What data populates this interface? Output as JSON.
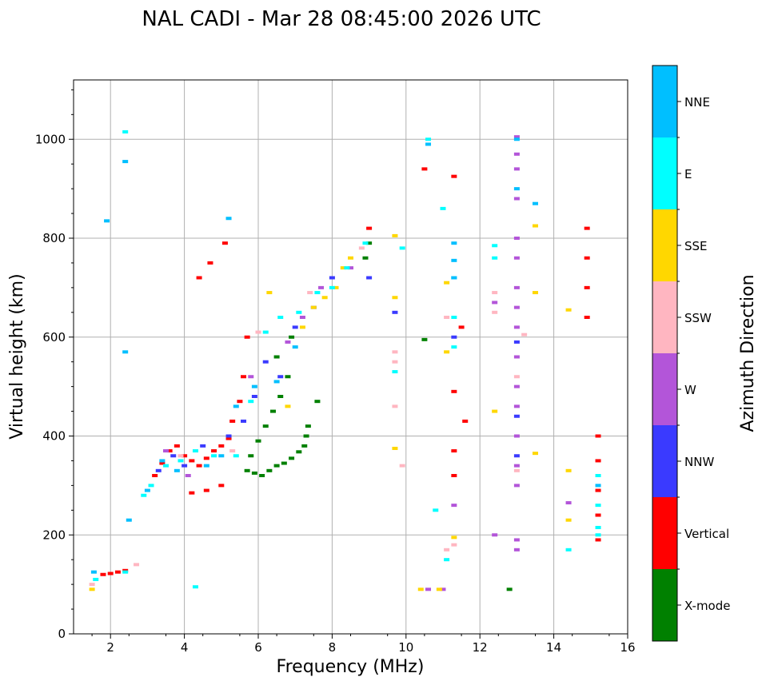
{
  "chart_data": {
    "type": "scatter",
    "title": "NAL CADI - Mar 28 08:45:00 2026 UTC",
    "xlabel": "Frequency (MHz)",
    "ylabel": "Virtual height (km)",
    "xlim": [
      1,
      16
    ],
    "ylim": [
      0,
      1120
    ],
    "xticks": [
      2,
      4,
      6,
      8,
      10,
      12,
      14,
      16
    ],
    "yticks": [
      0,
      200,
      400,
      600,
      800,
      1000
    ],
    "grid": true,
    "colorbar": {
      "label": "Azimuth Direction",
      "categories": [
        {
          "name": "X-mode",
          "color": "#008000"
        },
        {
          "name": "Vertical",
          "color": "#ff0000"
        },
        {
          "name": "NNW",
          "color": "#3a3aff"
        },
        {
          "name": "W",
          "color": "#b355d9"
        },
        {
          "name": "SSW",
          "color": "#ffb6c1"
        },
        {
          "name": "SSE",
          "color": "#ffd700"
        },
        {
          "name": "E",
          "color": "#00ffff"
        },
        {
          "name": "NNE",
          "color": "#00bfff"
        }
      ]
    },
    "series": [
      {
        "name": "X-mode",
        "points": [
          [
            5.7,
            330
          ],
          [
            5.9,
            325
          ],
          [
            6.1,
            320
          ],
          [
            6.3,
            330
          ],
          [
            6.5,
            340
          ],
          [
            6.7,
            345
          ],
          [
            6.9,
            355
          ],
          [
            7.1,
            368
          ],
          [
            7.25,
            380
          ],
          [
            7.3,
            400
          ],
          [
            7.35,
            420
          ],
          [
            5.8,
            360
          ],
          [
            6.0,
            390
          ],
          [
            6.2,
            420
          ],
          [
            6.4,
            450
          ],
          [
            6.6,
            480
          ],
          [
            6.8,
            520
          ],
          [
            6.5,
            560
          ],
          [
            6.9,
            600
          ],
          [
            7.6,
            470
          ],
          [
            8.9,
            760
          ],
          [
            9.0,
            790
          ],
          [
            10.5,
            595
          ],
          [
            12.8,
            90
          ]
        ]
      },
      {
        "name": "Vertical",
        "points": [
          [
            1.8,
            120
          ],
          [
            2.0,
            122
          ],
          [
            2.2,
            125
          ],
          [
            2.4,
            128
          ],
          [
            3.2,
            320
          ],
          [
            3.4,
            345
          ],
          [
            3.6,
            370
          ],
          [
            3.8,
            380
          ],
          [
            4.0,
            360
          ],
          [
            4.2,
            350
          ],
          [
            4.4,
            340
          ],
          [
            4.6,
            355
          ],
          [
            4.8,
            370
          ],
          [
            5.0,
            380
          ],
          [
            5.2,
            395
          ],
          [
            5.3,
            430
          ],
          [
            5.5,
            470
          ],
          [
            5.6,
            520
          ],
          [
            5.7,
            600
          ],
          [
            4.4,
            720
          ],
          [
            4.7,
            750
          ],
          [
            5.1,
            790
          ],
          [
            4.2,
            285
          ],
          [
            4.6,
            290
          ],
          [
            5.0,
            300
          ],
          [
            9.0,
            820
          ],
          [
            10.5,
            940
          ],
          [
            11.3,
            925
          ],
          [
            11.3,
            490
          ],
          [
            11.3,
            370
          ],
          [
            11.3,
            320
          ],
          [
            11.5,
            620
          ],
          [
            11.6,
            430
          ],
          [
            14.9,
            820
          ],
          [
            14.9,
            760
          ],
          [
            14.9,
            700
          ],
          [
            14.9,
            640
          ],
          [
            15.2,
            400
          ],
          [
            15.2,
            350
          ],
          [
            15.2,
            290
          ],
          [
            15.2,
            240
          ],
          [
            15.2,
            190
          ]
        ]
      },
      {
        "name": "NNW",
        "points": [
          [
            3.3,
            330
          ],
          [
            3.7,
            360
          ],
          [
            4.0,
            340
          ],
          [
            4.5,
            380
          ],
          [
            5.2,
            400
          ],
          [
            5.6,
            430
          ],
          [
            5.9,
            480
          ],
          [
            6.2,
            550
          ],
          [
            6.6,
            520
          ],
          [
            7.0,
            620
          ],
          [
            7.5,
            660
          ],
          [
            8.0,
            720
          ],
          [
            9.0,
            720
          ],
          [
            9.7,
            650
          ],
          [
            11.3,
            600
          ],
          [
            13.0,
            440
          ],
          [
            13.0,
            590
          ],
          [
            13.0,
            360
          ]
        ]
      },
      {
        "name": "W",
        "points": [
          [
            3.5,
            370
          ],
          [
            4.1,
            320
          ],
          [
            5.8,
            520
          ],
          [
            6.8,
            590
          ],
          [
            7.2,
            640
          ],
          [
            7.7,
            700
          ],
          [
            8.5,
            740
          ],
          [
            10.6,
            90
          ],
          [
            11.0,
            90
          ],
          [
            12.4,
            670
          ],
          [
            13.0,
            1005
          ],
          [
            13.0,
            970
          ],
          [
            13.0,
            940
          ],
          [
            13.0,
            880
          ],
          [
            13.0,
            800
          ],
          [
            13.0,
            760
          ],
          [
            13.0,
            700
          ],
          [
            13.0,
            660
          ],
          [
            13.0,
            620
          ],
          [
            13.0,
            560
          ],
          [
            13.0,
            500
          ],
          [
            13.0,
            460
          ],
          [
            13.0,
            400
          ],
          [
            13.0,
            340
          ],
          [
            13.0,
            300
          ],
          [
            13.0,
            190
          ],
          [
            13.0,
            170
          ],
          [
            14.4,
            265
          ],
          [
            11.3,
            260
          ],
          [
            12.4,
            200
          ]
        ]
      },
      {
        "name": "SSW",
        "points": [
          [
            1.5,
            100
          ],
          [
            2.7,
            140
          ],
          [
            3.9,
            360
          ],
          [
            5.3,
            370
          ],
          [
            6.0,
            610
          ],
          [
            7.4,
            690
          ],
          [
            8.8,
            780
          ],
          [
            9.7,
            570
          ],
          [
            9.7,
            550
          ],
          [
            9.7,
            460
          ],
          [
            9.9,
            340
          ],
          [
            11.1,
            640
          ],
          [
            11.1,
            170
          ],
          [
            12.4,
            690
          ],
          [
            12.4,
            650
          ],
          [
            13.2,
            605
          ],
          [
            13.0,
            520
          ],
          [
            13.0,
            330
          ],
          [
            11.3,
            180
          ]
        ]
      },
      {
        "name": "SSE",
        "points": [
          [
            1.5,
            90
          ],
          [
            6.3,
            690
          ],
          [
            6.8,
            460
          ],
          [
            7.2,
            620
          ],
          [
            7.5,
            660
          ],
          [
            7.8,
            680
          ],
          [
            8.1,
            700
          ],
          [
            8.3,
            740
          ],
          [
            8.5,
            760
          ],
          [
            9.7,
            805
          ],
          [
            9.7,
            680
          ],
          [
            9.7,
            375
          ],
          [
            10.4,
            90
          ],
          [
            10.9,
            90
          ],
          [
            11.1,
            570
          ],
          [
            11.1,
            710
          ],
          [
            11.3,
            195
          ],
          [
            12.4,
            450
          ],
          [
            13.5,
            825
          ],
          [
            13.5,
            690
          ],
          [
            13.5,
            365
          ],
          [
            14.4,
            655
          ],
          [
            14.4,
            330
          ],
          [
            14.4,
            230
          ]
        ]
      },
      {
        "name": "E",
        "points": [
          [
            1.6,
            110
          ],
          [
            2.4,
            125
          ],
          [
            2.9,
            280
          ],
          [
            3.1,
            300
          ],
          [
            3.5,
            340
          ],
          [
            3.9,
            350
          ],
          [
            4.3,
            370
          ],
          [
            4.8,
            360
          ],
          [
            5.4,
            360
          ],
          [
            5.8,
            470
          ],
          [
            6.2,
            610
          ],
          [
            6.6,
            640
          ],
          [
            7.1,
            650
          ],
          [
            7.6,
            690
          ],
          [
            8.0,
            700
          ],
          [
            8.4,
            740
          ],
          [
            8.9,
            790
          ],
          [
            9.7,
            530
          ],
          [
            9.9,
            780
          ],
          [
            10.6,
            1000
          ],
          [
            10.8,
            250
          ],
          [
            11.0,
            860
          ],
          [
            11.1,
            150
          ],
          [
            11.3,
            640
          ],
          [
            11.3,
            580
          ],
          [
            12.4,
            785
          ],
          [
            12.4,
            760
          ],
          [
            14.4,
            170
          ],
          [
            15.2,
            320
          ],
          [
            15.2,
            260
          ],
          [
            15.2,
            215
          ],
          [
            15.2,
            200
          ],
          [
            4.3,
            95
          ],
          [
            2.4,
            1015
          ]
        ]
      },
      {
        "name": "NNE",
        "points": [
          [
            1.55,
            125
          ],
          [
            1.9,
            835
          ],
          [
            2.4,
            955
          ],
          [
            2.4,
            570
          ],
          [
            2.5,
            230
          ],
          [
            3.0,
            290
          ],
          [
            3.4,
            350
          ],
          [
            3.8,
            330
          ],
          [
            4.6,
            340
          ],
          [
            5.0,
            360
          ],
          [
            5.2,
            840
          ],
          [
            5.4,
            460
          ],
          [
            5.9,
            500
          ],
          [
            6.5,
            510
          ],
          [
            7.0,
            580
          ],
          [
            11.3,
            720
          ],
          [
            11.3,
            790
          ],
          [
            11.3,
            755
          ],
          [
            11.3,
            720
          ],
          [
            13.0,
            1000
          ],
          [
            13.5,
            870
          ],
          [
            13.0,
            900
          ],
          [
            10.6,
            990
          ],
          [
            15.2,
            300
          ]
        ]
      }
    ]
  }
}
